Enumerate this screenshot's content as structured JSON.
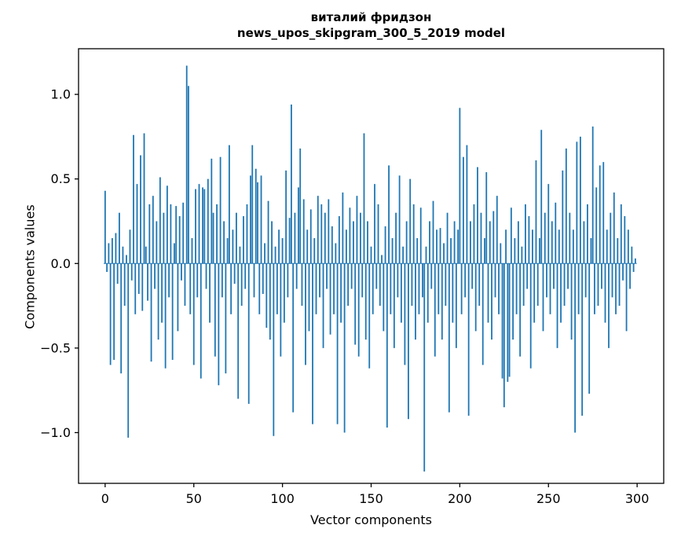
{
  "figure": {
    "title_line1": "виталий фридзон",
    "title_line2": "news_upos_skipgram_300_5_2019 model",
    "xlabel": "Vector components",
    "ylabel": "Components values"
  },
  "chart_data": {
    "type": "bar",
    "title": "виталий фридзон\nnews_upos_skipgram_300_5_2019 model",
    "xlabel": "Vector components",
    "ylabel": "Components values",
    "bar_color": "#1f77b4",
    "grid": false,
    "legend": "none",
    "xlim": [
      -15,
      315
    ],
    "ylim": [
      -1.3,
      1.27
    ],
    "x_ticks": [
      0,
      50,
      100,
      150,
      200,
      250,
      300
    ],
    "x_tick_labels": [
      "0",
      "50",
      "100",
      "150",
      "200",
      "250",
      "300"
    ],
    "y_ticks": [
      -1.0,
      -0.5,
      0.0,
      0.5,
      1.0
    ],
    "y_tick_labels": [
      "−1.0",
      "−0.5",
      "0.0",
      "0.5",
      "1.0"
    ],
    "bar_width": 0.8,
    "values": [
      0.43,
      -0.05,
      0.12,
      -0.6,
      0.15,
      -0.57,
      0.18,
      -0.12,
      0.3,
      -0.65,
      0.1,
      -0.25,
      0.05,
      -1.03,
      0.2,
      -0.1,
      0.76,
      -0.3,
      0.47,
      -0.18,
      0.64,
      -0.28,
      0.77,
      0.1,
      -0.22,
      0.35,
      -0.58,
      0.4,
      -0.15,
      0.25,
      -0.45,
      0.51,
      -0.35,
      0.3,
      -0.62,
      0.46,
      -0.2,
      0.35,
      -0.57,
      0.12,
      0.34,
      -0.4,
      0.28,
      -0.1,
      0.36,
      -0.25,
      1.17,
      1.05,
      -0.3,
      0.15,
      -0.6,
      0.44,
      -0.2,
      0.47,
      -0.68,
      0.45,
      0.44,
      -0.15,
      0.5,
      -0.35,
      0.62,
      0.3,
      -0.55,
      0.35,
      -0.72,
      0.63,
      -0.2,
      0.25,
      -0.65,
      0.15,
      0.7,
      -0.3,
      0.2,
      -0.12,
      0.3,
      -0.8,
      0.1,
      -0.25,
      0.28,
      -0.15,
      0.35,
      -0.83,
      0.52,
      0.7,
      -0.2,
      0.56,
      0.48,
      -0.3,
      0.52,
      -0.18,
      0.12,
      -0.38,
      0.37,
      -0.45,
      0.25,
      -1.02,
      0.1,
      -0.3,
      0.2,
      -0.55,
      0.15,
      -0.35,
      0.55,
      -0.2,
      0.27,
      0.94,
      -0.88,
      0.3,
      -0.15,
      0.45,
      0.68,
      -0.25,
      0.38,
      -0.6,
      0.2,
      -0.4,
      0.32,
      -0.95,
      0.15,
      -0.3,
      0.4,
      -0.2,
      0.35,
      -0.5,
      0.3,
      -0.15,
      0.38,
      -0.42,
      0.22,
      -0.3,
      0.12,
      -0.95,
      0.28,
      -0.35,
      0.42,
      -1.0,
      0.2,
      -0.25,
      0.33,
      -0.15,
      0.25,
      -0.48,
      0.4,
      -0.55,
      0.3,
      -0.2,
      0.77,
      -0.45,
      0.25,
      -0.62,
      0.1,
      -0.3,
      0.47,
      -0.15,
      0.35,
      -0.25,
      0.05,
      -0.4,
      0.22,
      -0.97,
      0.58,
      -0.3,
      0.15,
      -0.5,
      0.3,
      -0.2,
      0.52,
      -0.35,
      0.1,
      -0.6,
      0.25,
      -0.92,
      0.5,
      -0.25,
      0.35,
      -0.45,
      0.15,
      -0.3,
      0.33,
      -0.2,
      -1.23,
      0.1,
      -0.35,
      0.25,
      -0.15,
      0.37,
      -0.55,
      0.2,
      -0.3,
      0.21,
      -0.45,
      0.12,
      -0.25,
      0.3,
      -0.88,
      0.15,
      -0.35,
      0.25,
      -0.5,
      0.2,
      0.92,
      -0.3,
      0.63,
      -0.2,
      0.7,
      -0.9,
      0.25,
      -0.15,
      0.35,
      -0.4,
      0.57,
      -0.25,
      0.3,
      -0.6,
      0.15,
      0.54,
      -0.35,
      0.25,
      -0.45,
      0.31,
      -0.2,
      0.4,
      -0.3,
      0.12,
      -0.68,
      -0.85,
      0.2,
      -0.7,
      -0.67,
      0.33,
      -0.45,
      0.15,
      -0.3,
      0.25,
      -0.55,
      0.1,
      -0.25,
      0.35,
      -0.15,
      0.28,
      -0.62,
      0.2,
      -0.35,
      0.61,
      -0.25,
      0.15,
      0.79,
      -0.4,
      0.3,
      -0.2,
      0.47,
      -0.3,
      0.25,
      -0.15,
      0.36,
      -0.5,
      0.2,
      -0.35,
      0.55,
      -0.25,
      0.68,
      -0.15,
      0.3,
      -0.45,
      0.2,
      -1.0,
      0.72,
      -0.3,
      0.75,
      -0.9,
      0.25,
      -0.2,
      0.35,
      -0.77,
      0.15,
      0.81,
      -0.3,
      0.45,
      -0.25,
      0.58,
      -0.15,
      0.6,
      -0.35,
      0.2,
      -0.5,
      0.3,
      -0.2,
      0.42,
      -0.3,
      0.15,
      -0.25,
      0.35,
      -0.1,
      0.28,
      -0.4,
      0.2,
      -0.15,
      0.1,
      -0.05,
      0.03
    ]
  }
}
